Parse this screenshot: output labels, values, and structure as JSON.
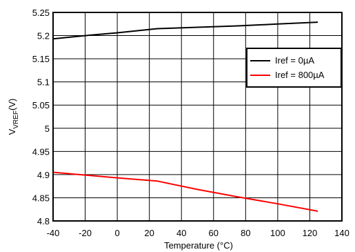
{
  "chart_data": {
    "type": "line",
    "xlabel": "Temperature (°C)",
    "ylabel": {
      "main": "V",
      "sub": "VREF",
      "unit": "(V)"
    },
    "xlim": [
      -40,
      140
    ],
    "ylim": [
      4.8,
      5.25
    ],
    "x_ticks": [
      -40,
      -20,
      0,
      20,
      40,
      60,
      80,
      100,
      120,
      140
    ],
    "y_ticks": [
      4.8,
      4.85,
      4.9,
      4.95,
      5,
      5.05,
      5.1,
      5.15,
      5.2,
      5.25
    ],
    "x_tick_labels": [
      "-40",
      "-20",
      "0",
      "20",
      "40",
      "60",
      "80",
      "100",
      "120",
      "140"
    ],
    "y_tick_labels": [
      "4.8",
      "4.85",
      "4.9",
      "4.95",
      "5",
      "5.05",
      "5.1",
      "5.15",
      "5.2",
      "5.25"
    ],
    "grid": true,
    "legend_position": "top-right",
    "series": [
      {
        "name": "Iref = 0µA",
        "color": "#000000",
        "x": [
          -40,
          -20,
          0,
          25,
          50,
          75,
          100,
          125
        ],
        "y": [
          5.193,
          5.2,
          5.206,
          5.215,
          5.218,
          5.221,
          5.225,
          5.229
        ]
      },
      {
        "name": "Iref = 800µA",
        "color": "#ff0000",
        "x": [
          -40,
          -20,
          0,
          25,
          50,
          75,
          100,
          125
        ],
        "y": [
          4.905,
          4.899,
          4.893,
          4.886,
          4.868,
          4.852,
          4.837,
          4.821
        ]
      }
    ]
  }
}
